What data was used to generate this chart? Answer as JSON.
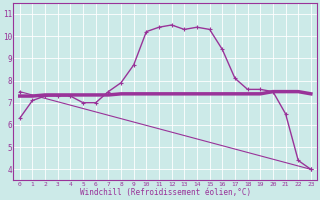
{
  "xlabel": "Windchill (Refroidissement éolien,°C)",
  "xlim": [
    -0.5,
    23.5
  ],
  "ylim": [
    3.5,
    11.5
  ],
  "yticks": [
    4,
    5,
    6,
    7,
    8,
    9,
    10,
    11
  ],
  "xticks": [
    0,
    1,
    2,
    3,
    4,
    5,
    6,
    7,
    8,
    9,
    10,
    11,
    12,
    13,
    14,
    15,
    16,
    17,
    18,
    19,
    20,
    21,
    22,
    23
  ],
  "bg_color": "#cceae8",
  "line_color": "#993399",
  "line1_x": [
    0,
    1,
    2,
    3,
    4,
    5,
    6,
    7,
    8,
    9,
    10,
    11,
    12,
    13,
    14,
    15,
    16,
    17,
    18,
    19,
    20,
    21,
    22,
    23
  ],
  "line1_y": [
    6.3,
    7.1,
    7.3,
    7.3,
    7.3,
    7.0,
    7.0,
    7.5,
    7.9,
    8.7,
    10.2,
    10.4,
    10.5,
    10.3,
    10.4,
    10.3,
    9.4,
    8.1,
    7.6,
    7.6,
    7.5,
    6.5,
    4.4,
    4.0
  ],
  "line2_x": [
    0,
    1,
    2,
    3,
    4,
    5,
    6,
    7,
    8,
    9,
    10,
    11,
    12,
    13,
    14,
    15,
    16,
    17,
    18,
    19,
    20,
    21,
    22,
    23
  ],
  "line2_y": [
    7.3,
    7.3,
    7.35,
    7.35,
    7.35,
    7.35,
    7.35,
    7.35,
    7.4,
    7.4,
    7.4,
    7.4,
    7.4,
    7.4,
    7.4,
    7.4,
    7.4,
    7.4,
    7.4,
    7.4,
    7.5,
    7.5,
    7.5,
    7.4
  ],
  "line3_x": [
    0,
    23
  ],
  "line3_y": [
    7.5,
    4.0
  ],
  "marker": "+"
}
